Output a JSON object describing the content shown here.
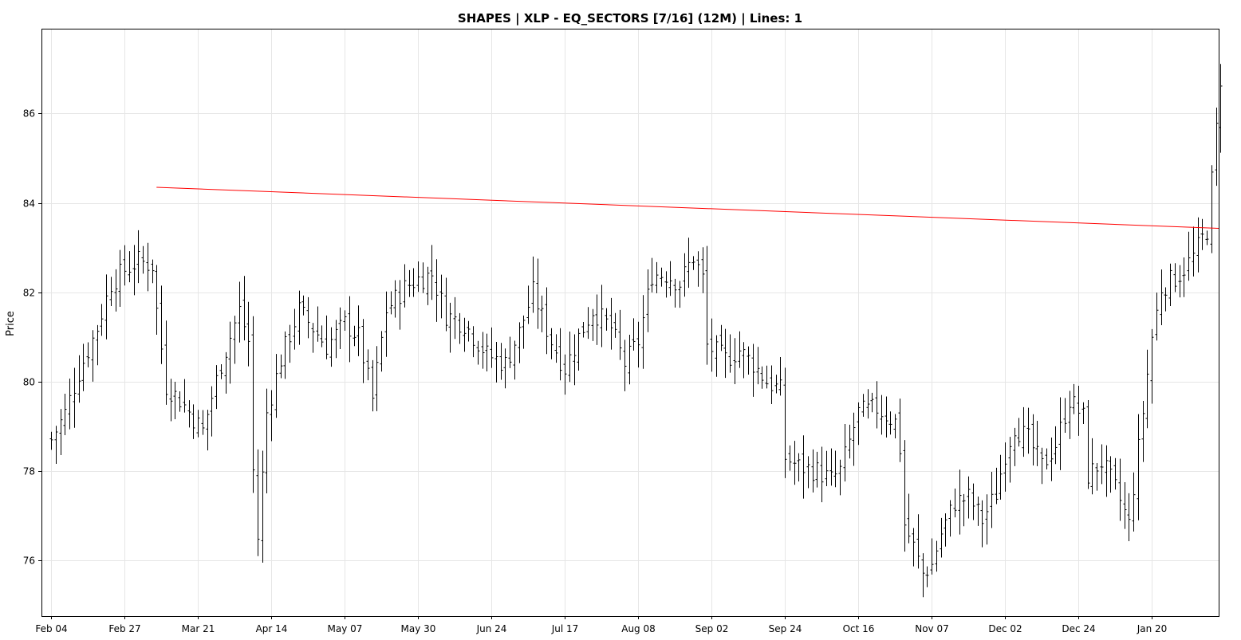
{
  "chart_data": {
    "type": "ohlc",
    "title": "SHAPES | XLP - EQ_SECTORS [7/16] (12M)  |  Lines: 1",
    "ylabel": "Price",
    "xlabel": "",
    "grid": true,
    "ylim": [
      74.75,
      87.9
    ],
    "yticks": [
      76,
      78,
      80,
      82,
      84,
      86
    ],
    "xtick_labels": [
      "Feb 04",
      "Feb 27",
      "Mar 21",
      "Apr 14",
      "May 07",
      "May 30",
      "Jun 24",
      "Jul 17",
      "Aug 08",
      "Sep 02",
      "Sep 24",
      "Oct 16",
      "Nov 07",
      "Dec 02",
      "Dec 24",
      "Jan 20"
    ],
    "xtick_index": [
      0,
      16,
      32,
      48,
      64,
      80,
      96,
      112,
      128,
      144,
      160,
      176,
      192,
      208,
      224,
      240
    ],
    "n_bars": 256,
    "anchors": [
      [
        0,
        78.7
      ],
      [
        3,
        79.3
      ],
      [
        6,
        80.2
      ],
      [
        10,
        81.2
      ],
      [
        13,
        82.2
      ],
      [
        16,
        82.5
      ],
      [
        19,
        82.7
      ],
      [
        22,
        82.6
      ],
      [
        23,
        81.6
      ],
      [
        25,
        79.9
      ],
      [
        28,
        79.6
      ],
      [
        33,
        78.9
      ],
      [
        37,
        80.4
      ],
      [
        41,
        81.6
      ],
      [
        43,
        80.9
      ],
      [
        44,
        78.0
      ],
      [
        45,
        76.5
      ],
      [
        47,
        79.3
      ],
      [
        50,
        80.5
      ],
      [
        54,
        81.6
      ],
      [
        57,
        81.2
      ],
      [
        60,
        80.8
      ],
      [
        64,
        81.3
      ],
      [
        67,
        81.0
      ],
      [
        70,
        79.6
      ],
      [
        73,
        81.6
      ],
      [
        77,
        82.1
      ],
      [
        80,
        82.3
      ],
      [
        83,
        82.4
      ],
      [
        86,
        81.5
      ],
      [
        90,
        81.3
      ],
      [
        95,
        80.6
      ],
      [
        99,
        80.4
      ],
      [
        102,
        81.1
      ],
      [
        105,
        82.0
      ],
      [
        109,
        80.9
      ],
      [
        112,
        80.3
      ],
      [
        115,
        81.0
      ],
      [
        118,
        81.6
      ],
      [
        122,
        81.2
      ],
      [
        125,
        80.4
      ],
      [
        128,
        80.9
      ],
      [
        131,
        82.4
      ],
      [
        134,
        82.4
      ],
      [
        137,
        82.2
      ],
      [
        140,
        82.8
      ],
      [
        142,
        82.3
      ],
      [
        143,
        80.8
      ],
      [
        147,
        80.5
      ],
      [
        150,
        80.7
      ],
      [
        153,
        80.4
      ],
      [
        156,
        80.0
      ],
      [
        159,
        79.8
      ],
      [
        160,
        78.3
      ],
      [
        163,
        78.1
      ],
      [
        167,
        78.0
      ],
      [
        170,
        77.8
      ],
      [
        172,
        78.0
      ],
      [
        176,
        79.3
      ],
      [
        180,
        79.4
      ],
      [
        184,
        79.1
      ],
      [
        185,
        78.5
      ],
      [
        186,
        76.8
      ],
      [
        188,
        76.3
      ],
      [
        190,
        75.7
      ],
      [
        192,
        75.9
      ],
      [
        194,
        76.6
      ],
      [
        197,
        77.3
      ],
      [
        200,
        77.4
      ],
      [
        203,
        76.9
      ],
      [
        206,
        77.5
      ],
      [
        208,
        78.4
      ],
      [
        210,
        79.0
      ],
      [
        213,
        78.7
      ],
      [
        216,
        78.1
      ],
      [
        219,
        78.6
      ],
      [
        222,
        79.6
      ],
      [
        225,
        79.2
      ],
      [
        226,
        77.9
      ],
      [
        229,
        78.2
      ],
      [
        232,
        77.6
      ],
      [
        235,
        76.8
      ],
      [
        237,
        78.5
      ],
      [
        240,
        81.0
      ],
      [
        242,
        82.1
      ],
      [
        246,
        82.4
      ],
      [
        249,
        82.8
      ],
      [
        252,
        83.4
      ],
      [
        253,
        84.5
      ],
      [
        255,
        86.8
      ]
    ],
    "series": [
      {
        "type": "trendline",
        "color": "#ff0000",
        "points": [
          [
            23,
            84.35
          ],
          [
            256,
            83.43
          ]
        ]
      }
    ]
  }
}
